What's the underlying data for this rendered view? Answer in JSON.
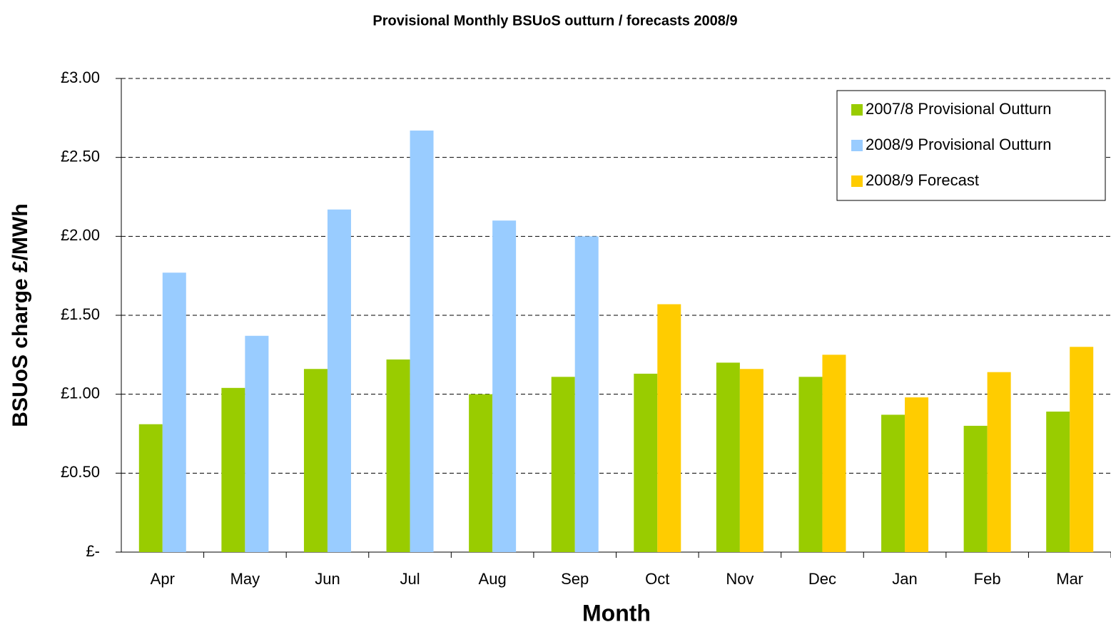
{
  "chart_data": {
    "type": "bar",
    "title": "Provisional Monthly BSUoS outturn / forecasts 2008/9",
    "x_label": "Month",
    "y_label": "BSUoS charge £/MWh",
    "categories": [
      "Apr",
      "May",
      "Jun",
      "Jul",
      "Aug",
      "Sep",
      "Oct",
      "Nov",
      "Dec",
      "Jan",
      "Feb",
      "Mar"
    ],
    "series": [
      {
        "name": "2007/8 Provisional Outturn",
        "color": "#99cc00",
        "values": [
          0.81,
          1.04,
          1.16,
          1.22,
          1.0,
          1.11,
          1.13,
          1.2,
          1.11,
          0.87,
          0.8,
          0.89
        ]
      },
      {
        "name": "2008/9 Provisional Outturn",
        "color": "#99ccff",
        "values": [
          1.77,
          1.37,
          2.17,
          2.67,
          2.1,
          2.0,
          null,
          null,
          null,
          null,
          null,
          null
        ]
      },
      {
        "name": "2008/9 Forecast",
        "color": "#ffcc00",
        "values": [
          null,
          null,
          null,
          null,
          null,
          null,
          1.57,
          1.16,
          1.25,
          0.98,
          1.14,
          1.3
        ]
      }
    ],
    "ylim": [
      0,
      3
    ],
    "yticks": [
      {
        "value": 0,
        "label": "£-"
      },
      {
        "value": 0.5,
        "label": "£0.50"
      },
      {
        "value": 1,
        "label": "£1.00"
      },
      {
        "value": 1.5,
        "label": "£1.50"
      },
      {
        "value": 2,
        "label": "£2.00"
      },
      {
        "value": 2.5,
        "label": "£2.50"
      },
      {
        "value": 3,
        "label": "£3.00"
      }
    ],
    "grid": true,
    "legend": "top-right"
  }
}
